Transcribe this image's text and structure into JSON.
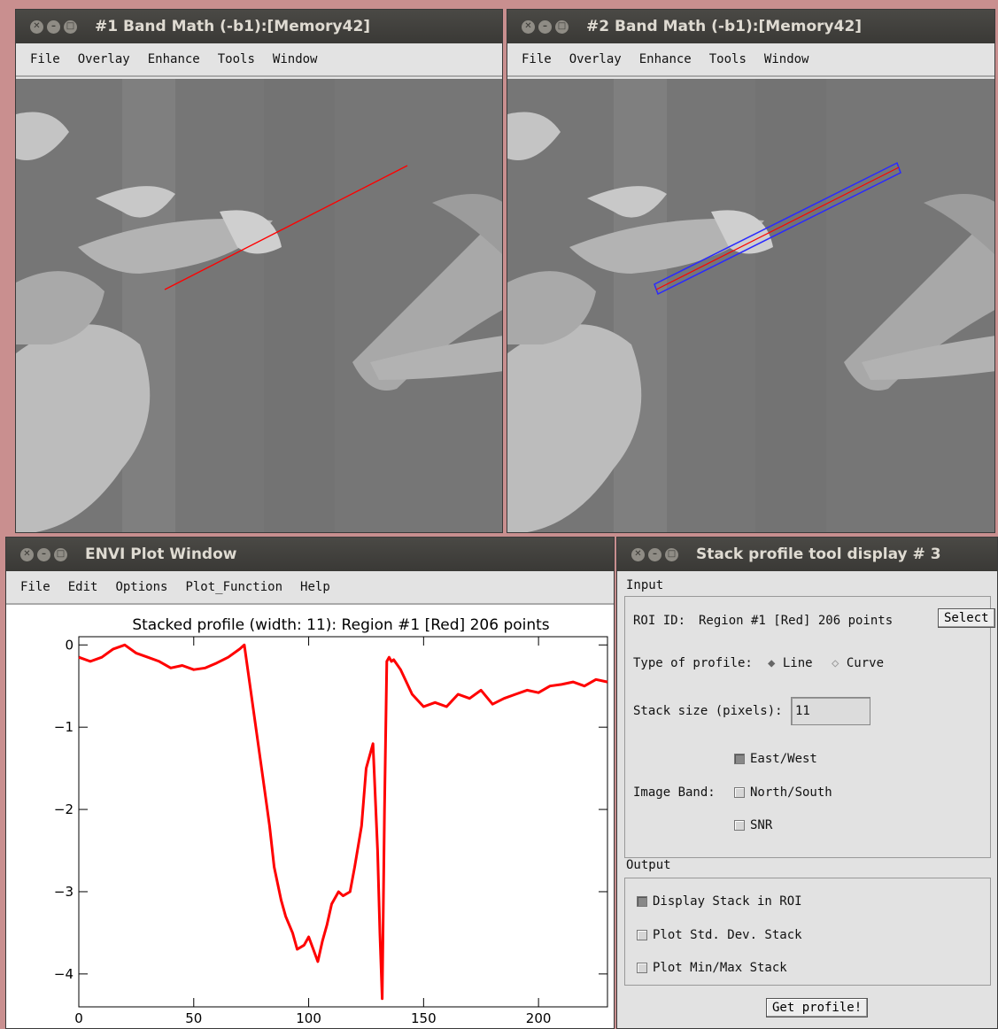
{
  "window1": {
    "title": "#1 Band Math (-b1):[Memory42]",
    "menu": [
      "File",
      "Overlay",
      "Enhance",
      "Tools",
      "Window"
    ]
  },
  "window2": {
    "title": "#2 Band Math (-b1):[Memory42]",
    "menu": [
      "File",
      "Overlay",
      "Enhance",
      "Tools",
      "Window"
    ]
  },
  "plot_window": {
    "title": "ENVI Plot Window",
    "menu": [
      "File",
      "Edit",
      "Options",
      "Plot_Function",
      "Help"
    ]
  },
  "stack_tool": {
    "title": "Stack profile tool display # 3",
    "input_label": "Input",
    "roi_label": "ROI ID:",
    "roi_value": "Region #1 [Red] 206 points",
    "select_button": "Select",
    "profile_type_label": "Type of profile:",
    "profile_line": "Line",
    "profile_curve": "Curve",
    "stack_size_label": "Stack size (pixels):",
    "stack_size_value": "11",
    "image_band_label": "Image Band:",
    "east_west": "East/West",
    "north_south": "North/South",
    "snr": "SNR",
    "output_label": "Output",
    "display_stack": "Display Stack in ROI",
    "plot_std": "Plot Std. Dev. Stack",
    "plot_minmax": "Plot Min/Max Stack",
    "get_profile_button": "Get profile!"
  },
  "colors": {
    "profile": "#ff0000",
    "roi_box": "#2a2aff"
  },
  "chart_data": {
    "type": "line",
    "title": "Stacked profile (width: 11): Region #1 [Red] 206 points",
    "xlabel": "",
    "ylabel": "",
    "xlim": [
      0,
      230
    ],
    "ylim": [
      -4.4,
      0.1
    ],
    "xticks": [
      0,
      50,
      100,
      150,
      200
    ],
    "yticks": [
      0,
      -1,
      -2,
      -3,
      -4
    ],
    "ytick_labels": [
      "0",
      "−1",
      "−2",
      "−3",
      "−4"
    ],
    "grid": false,
    "series": [
      {
        "x": [
          0,
          5,
          10,
          15,
          20,
          25,
          30,
          35,
          40,
          45,
          50,
          55,
          60,
          65,
          70,
          72,
          75,
          78,
          80,
          83,
          85,
          88,
          90,
          93,
          95,
          98,
          100,
          102,
          104,
          106,
          108,
          110,
          113,
          115,
          118,
          120,
          123,
          125,
          128,
          130,
          131,
          132,
          133,
          134,
          135,
          136,
          137,
          140,
          145,
          150,
          155,
          160,
          165,
          170,
          175,
          180,
          185,
          190,
          195,
          200,
          205,
          210,
          215,
          220,
          225,
          230
        ],
        "y": [
          -0.15,
          -0.2,
          -0.15,
          -0.05,
          0.0,
          -0.1,
          -0.15,
          -0.2,
          -0.28,
          -0.25,
          -0.3,
          -0.28,
          -0.22,
          -0.15,
          -0.05,
          0.0,
          -0.6,
          -1.2,
          -1.6,
          -2.2,
          -2.7,
          -3.1,
          -3.3,
          -3.5,
          -3.7,
          -3.65,
          -3.55,
          -3.7,
          -3.85,
          -3.6,
          -3.4,
          -3.15,
          -3.0,
          -3.05,
          -3.0,
          -2.7,
          -2.2,
          -1.5,
          -1.2,
          -2.5,
          -3.5,
          -4.3,
          -2.0,
          -0.2,
          -0.15,
          -0.2,
          -0.18,
          -0.3,
          -0.6,
          -0.75,
          -0.7,
          -0.75,
          -0.6,
          -0.65,
          -0.55,
          -0.72,
          -0.65,
          -0.6,
          -0.55,
          -0.58,
          -0.5,
          -0.48,
          -0.45,
          -0.5,
          -0.42,
          -0.45
        ]
      }
    ]
  }
}
